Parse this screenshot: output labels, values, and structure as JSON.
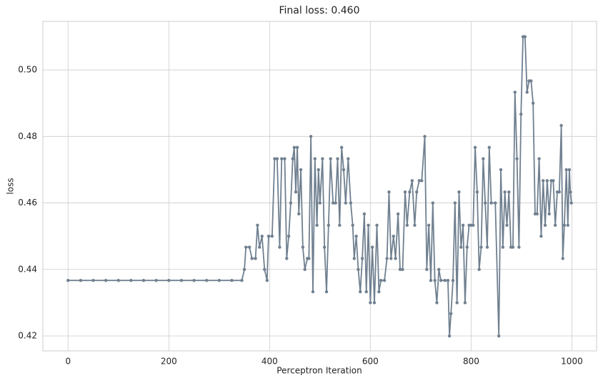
{
  "chart_data": {
    "type": "line",
    "title": "Final loss: 0.460",
    "xlabel": "Perceptron Iteration",
    "ylabel": "loss",
    "color": "#708090",
    "grid": true,
    "xlim": [
      -50,
      1049
    ],
    "ylim": [
      0.4155,
      0.5146
    ],
    "xticks": [
      0,
      200,
      400,
      600,
      800,
      1000
    ],
    "yticks": [
      0.42,
      0.44,
      0.46,
      0.48,
      {
        "value": 0.5,
        "label": "0.50"
      }
    ],
    "x": [
      0,
      25,
      50,
      75,
      100,
      125,
      150,
      175,
      200,
      225,
      250,
      275,
      300,
      325,
      345,
      350,
      353,
      360,
      365,
      372,
      376,
      380,
      385,
      390,
      395,
      398,
      405,
      410,
      415,
      420,
      424,
      430,
      434,
      438,
      442,
      446,
      449,
      452,
      455,
      458,
      462,
      466,
      470,
      475,
      478,
      482,
      486,
      490,
      494,
      497,
      500,
      505,
      509,
      513,
      517,
      521,
      526,
      531,
      535,
      539,
      543,
      547,
      551,
      556,
      561,
      565,
      568,
      572,
      576,
      580,
      584,
      588,
      592,
      596,
      600,
      604,
      608,
      613,
      617,
      621,
      628,
      633,
      637,
      641,
      646,
      650,
      655,
      659,
      664,
      669,
      673,
      678,
      683,
      688,
      692,
      697,
      702,
      708,
      712,
      716,
      720,
      724,
      728,
      732,
      736,
      740,
      748,
      754,
      757,
      760,
      764,
      768,
      772,
      776,
      780,
      784,
      788,
      792,
      796,
      800,
      804,
      808,
      812,
      816,
      820,
      824,
      828,
      832,
      836,
      840,
      848,
      855,
      859,
      863,
      867,
      871,
      875,
      879,
      883,
      887,
      891,
      895,
      899,
      903,
      907,
      911,
      915,
      919,
      923,
      927,
      931,
      935,
      939,
      943,
      947,
      951,
      955,
      959,
      963,
      967,
      971,
      975,
      979,
      982,
      985,
      989,
      992,
      995,
      997,
      999
    ],
    "values": [
      0.4367,
      0.4367,
      0.4367,
      0.4367,
      0.4367,
      0.4367,
      0.4367,
      0.4367,
      0.4367,
      0.4367,
      0.4367,
      0.4367,
      0.4367,
      0.4367,
      0.4367,
      0.44,
      0.4467,
      0.4467,
      0.4433,
      0.4433,
      0.4533,
      0.4467,
      0.45,
      0.44,
      0.4367,
      0.45,
      0.45,
      0.4733,
      0.4733,
      0.4467,
      0.4733,
      0.4733,
      0.4433,
      0.45,
      0.46,
      0.4733,
      0.4767,
      0.4633,
      0.4767,
      0.4567,
      0.47,
      0.4467,
      0.44,
      0.4433,
      0.4433,
      0.48,
      0.4333,
      0.4733,
      0.4533,
      0.47,
      0.46,
      0.4733,
      0.4467,
      0.4333,
      0.4533,
      0.4733,
      0.46,
      0.46,
      0.4733,
      0.4533,
      0.4767,
      0.47,
      0.46,
      0.4733,
      0.46,
      0.4533,
      0.4433,
      0.45,
      0.44,
      0.4333,
      0.4433,
      0.4567,
      0.4333,
      0.4533,
      0.43,
      0.4467,
      0.43,
      0.4533,
      0.4333,
      0.4367,
      0.4367,
      0.4433,
      0.4633,
      0.4433,
      0.45,
      0.4433,
      0.4567,
      0.44,
      0.44,
      0.4633,
      0.4533,
      0.4633,
      0.4667,
      0.4533,
      0.4633,
      0.4667,
      0.4667,
      0.48,
      0.44,
      0.4533,
      0.4367,
      0.46,
      0.4367,
      0.43,
      0.44,
      0.4367,
      0.4367,
      0.4367,
      0.42,
      0.4267,
      0.4367,
      0.46,
      0.43,
      0.4633,
      0.4467,
      0.4533,
      0.43,
      0.4467,
      0.4533,
      0.4533,
      0.4533,
      0.4767,
      0.4633,
      0.44,
      0.4467,
      0.4733,
      0.46,
      0.4467,
      0.4767,
      0.46,
      0.46,
      0.42,
      0.47,
      0.4467,
      0.4633,
      0.4533,
      0.4633,
      0.4467,
      0.4467,
      0.4933,
      0.4733,
      0.4467,
      0.4867,
      0.51,
      0.51,
      0.4933,
      0.4967,
      0.4967,
      0.49,
      0.4567,
      0.4567,
      0.4733,
      0.45,
      0.4667,
      0.4533,
      0.4667,
      0.4567,
      0.4667,
      0.4667,
      0.4533,
      0.4633,
      0.4633,
      0.4833,
      0.4433,
      0.4533,
      0.47,
      0.4533,
      0.47,
      0.4633,
      0.46
    ]
  }
}
